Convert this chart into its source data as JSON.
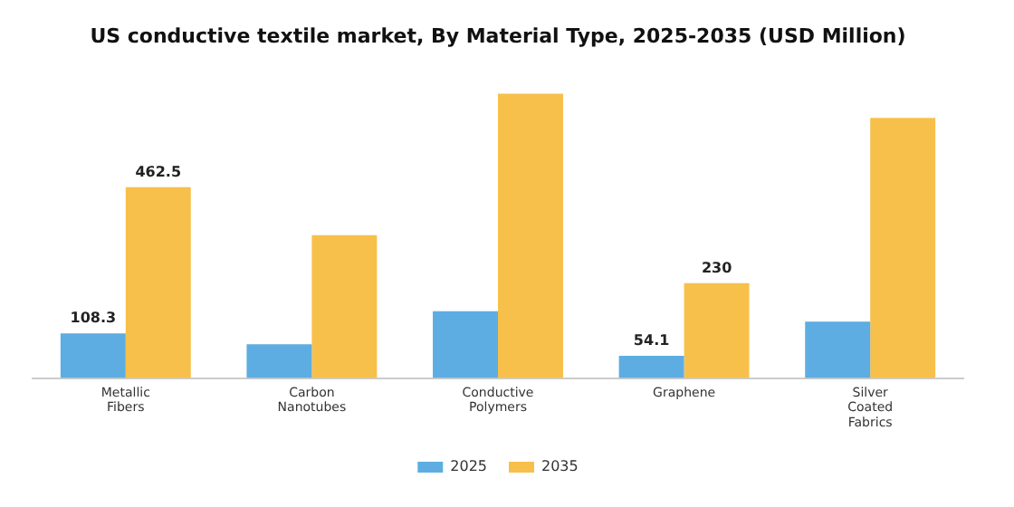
{
  "chart_data": {
    "type": "bar",
    "title": "US conductive textile market, By Material Type, 2025-2035 (USD Million)",
    "categories": [
      "Metallic Fibers",
      "Carbon Nanotubes",
      "Conductive Polymers",
      "Graphene",
      "Silver Coated Fabrics"
    ],
    "series": [
      {
        "name": "2025",
        "color": "#5dade2",
        "values": [
          108.3,
          82,
          162,
          54.1,
          137
        ],
        "value_labels": [
          "108.3",
          null,
          null,
          "54.1",
          null
        ]
      },
      {
        "name": "2035",
        "color": "#f7c04a",
        "values": [
          462.5,
          346,
          689,
          230,
          630
        ],
        "value_labels": [
          "462.5",
          null,
          null,
          "230",
          null
        ]
      }
    ],
    "grid": false,
    "legend": "bottom"
  }
}
